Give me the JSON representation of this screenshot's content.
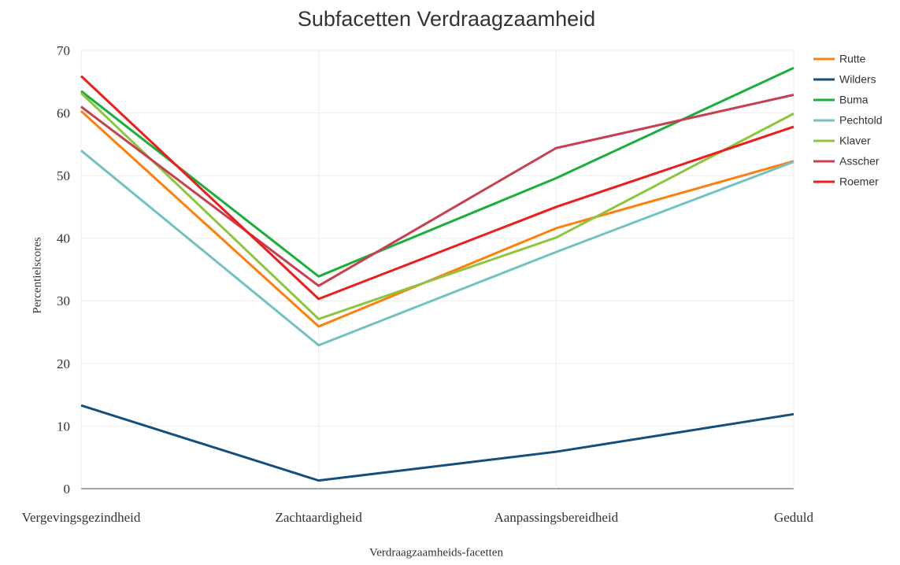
{
  "chart_data": {
    "type": "line",
    "title": "Subfacetten Verdraagzaamheid",
    "x_label": "Verdraagzaamheids-facetten",
    "y_label": "Percentielscores",
    "categories": [
      "Vergevingsgezindheid",
      "Zachtaardigheid",
      "Aanpassingsbereidheid",
      "Geduld"
    ],
    "series": [
      {
        "name": "Rutte",
        "color": "#ff7f0e",
        "values": [
          60.3,
          25.9,
          41.6,
          52.3
        ]
      },
      {
        "name": "Wilders",
        "color": "#154e7a",
        "values": [
          13.3,
          1.3,
          5.9,
          11.9
        ]
      },
      {
        "name": "Buma",
        "color": "#1aaf3a",
        "values": [
          63.5,
          33.9,
          49.6,
          67.2
        ]
      },
      {
        "name": "Pechtold",
        "color": "#72c2c2",
        "values": [
          54.0,
          22.9,
          37.8,
          52.2
        ]
      },
      {
        "name": "Klaver",
        "color": "#8cc63e",
        "values": [
          63.2,
          27.1,
          40.1,
          59.9
        ]
      },
      {
        "name": "Asscher",
        "color": "#c8404f",
        "values": [
          61.0,
          32.4,
          54.4,
          62.9
        ]
      },
      {
        "name": "Roemer",
        "color": "#ef1c1c",
        "values": [
          65.9,
          30.3,
          45.0,
          57.8
        ]
      }
    ],
    "ylim": [
      0,
      70
    ],
    "yticks": [
      0,
      10,
      20,
      30,
      40,
      50,
      60,
      70
    ],
    "grid": true,
    "legend": "right"
  }
}
